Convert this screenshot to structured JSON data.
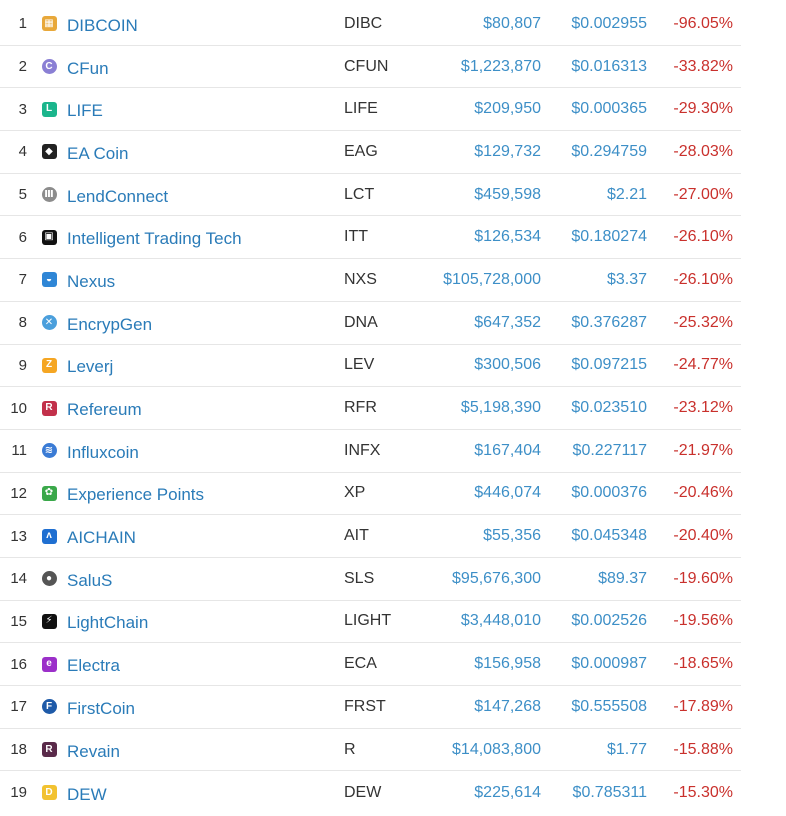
{
  "rows": [
    {
      "rank": "1",
      "name": "DIBCOIN",
      "symbol": "DIBC",
      "market_cap": "$80,807",
      "price": "$0.002955",
      "change": "-96.05%",
      "logo_icon": "dibcoin-logo-icon",
      "logo_color": "#e8a83a",
      "logo_glyph": "▦"
    },
    {
      "rank": "2",
      "name": "CFun",
      "symbol": "CFUN",
      "market_cap": "$1,223,870",
      "price": "$0.016313",
      "change": "-33.82%",
      "logo_icon": "cfun-logo-icon",
      "logo_color": "#8a7fd4",
      "logo_glyph": "C"
    },
    {
      "rank": "3",
      "name": "LIFE",
      "symbol": "LIFE",
      "market_cap": "$209,950",
      "price": "$0.000365",
      "change": "-29.30%",
      "logo_icon": "life-logo-icon",
      "logo_color": "#1bb58c",
      "logo_glyph": "L"
    },
    {
      "rank": "4",
      "name": "EA Coin",
      "symbol": "EAG",
      "market_cap": "$129,732",
      "price": "$0.294759",
      "change": "-28.03%",
      "logo_icon": "ea-coin-logo-icon",
      "logo_color": "#222222",
      "logo_glyph": "◆"
    },
    {
      "rank": "5",
      "name": "LendConnect",
      "symbol": "LCT",
      "market_cap": "$459,598",
      "price": "$2.21",
      "change": "-27.00%",
      "logo_icon": "lendconnect-logo-icon",
      "logo_color": "#8c8c8c",
      "logo_glyph": "Ⅲ"
    },
    {
      "rank": "6",
      "name": "Intelligent Trading Tech",
      "symbol": "ITT",
      "market_cap": "$126,534",
      "price": "$0.180274",
      "change": "-26.10%",
      "logo_icon": "intelligent-trading-logo-icon",
      "logo_color": "#111111",
      "logo_glyph": "▣"
    },
    {
      "rank": "7",
      "name": "Nexus",
      "symbol": "NXS",
      "market_cap": "$105,728,000",
      "price": "$3.37",
      "change": "-26.10%",
      "logo_icon": "nexus-logo-icon",
      "logo_color": "#2f86d6",
      "logo_glyph": "◒"
    },
    {
      "rank": "8",
      "name": "EncrypGen",
      "symbol": "DNA",
      "market_cap": "$647,352",
      "price": "$0.376287",
      "change": "-25.32%",
      "logo_icon": "encrypgen-logo-icon",
      "logo_color": "#4b9fdc",
      "logo_glyph": "✕"
    },
    {
      "rank": "9",
      "name": "Leverj",
      "symbol": "LEV",
      "market_cap": "$300,506",
      "price": "$0.097215",
      "change": "-24.77%",
      "logo_icon": "leverj-logo-icon",
      "logo_color": "#f5a623",
      "logo_glyph": "Z"
    },
    {
      "rank": "10",
      "name": "Refereum",
      "symbol": "RFR",
      "market_cap": "$5,198,390",
      "price": "$0.023510",
      "change": "-23.12%",
      "logo_icon": "refereum-logo-icon",
      "logo_color": "#c2304a",
      "logo_glyph": "R"
    },
    {
      "rank": "11",
      "name": "Influxcoin",
      "symbol": "INFX",
      "market_cap": "$167,404",
      "price": "$0.227117",
      "change": "-21.97%",
      "logo_icon": "influxcoin-logo-icon",
      "logo_color": "#3a7bd5",
      "logo_glyph": "≋"
    },
    {
      "rank": "12",
      "name": "Experience Points",
      "symbol": "XP",
      "market_cap": "$446,074",
      "price": "$0.000376",
      "change": "-20.46%",
      "logo_icon": "experience-points-logo-icon",
      "logo_color": "#3aa84a",
      "logo_glyph": "✿"
    },
    {
      "rank": "13",
      "name": "AICHAIN",
      "symbol": "AIT",
      "market_cap": "$55,356",
      "price": "$0.045348",
      "change": "-20.40%",
      "logo_icon": "aichain-logo-icon",
      "logo_color": "#1f6fd1",
      "logo_glyph": "ʌ"
    },
    {
      "rank": "14",
      "name": "SaluS",
      "symbol": "SLS",
      "market_cap": "$95,676,300",
      "price": "$89.37",
      "change": "-19.60%",
      "logo_icon": "salus-logo-icon",
      "logo_color": "#555555",
      "logo_glyph": "●"
    },
    {
      "rank": "15",
      "name": "LightChain",
      "symbol": "LIGHT",
      "market_cap": "$3,448,010",
      "price": "$0.002526",
      "change": "-19.56%",
      "logo_icon": "lightchain-logo-icon",
      "logo_color": "#111111",
      "logo_glyph": "⚡"
    },
    {
      "rank": "16",
      "name": "Electra",
      "symbol": "ECA",
      "market_cap": "$156,958",
      "price": "$0.000987",
      "change": "-18.65%",
      "logo_icon": "electra-logo-icon",
      "logo_color": "#9b2fc9",
      "logo_glyph": "e"
    },
    {
      "rank": "17",
      "name": "FirstCoin",
      "symbol": "FRST",
      "market_cap": "$147,268",
      "price": "$0.555508",
      "change": "-17.89%",
      "logo_icon": "firstcoin-logo-icon",
      "logo_color": "#1e5aa8",
      "logo_glyph": "F"
    },
    {
      "rank": "18",
      "name": "Revain",
      "symbol": "R",
      "market_cap": "$14,083,800",
      "price": "$1.77",
      "change": "-15.88%",
      "logo_icon": "revain-logo-icon",
      "logo_color": "#5a2a4a",
      "logo_glyph": "R"
    },
    {
      "rank": "19",
      "name": "DEW",
      "symbol": "DEW",
      "market_cap": "$225,614",
      "price": "$0.785311",
      "change": "-15.30%",
      "logo_icon": "dew-logo-icon",
      "logo_color": "#f2c230",
      "logo_glyph": "D"
    }
  ]
}
